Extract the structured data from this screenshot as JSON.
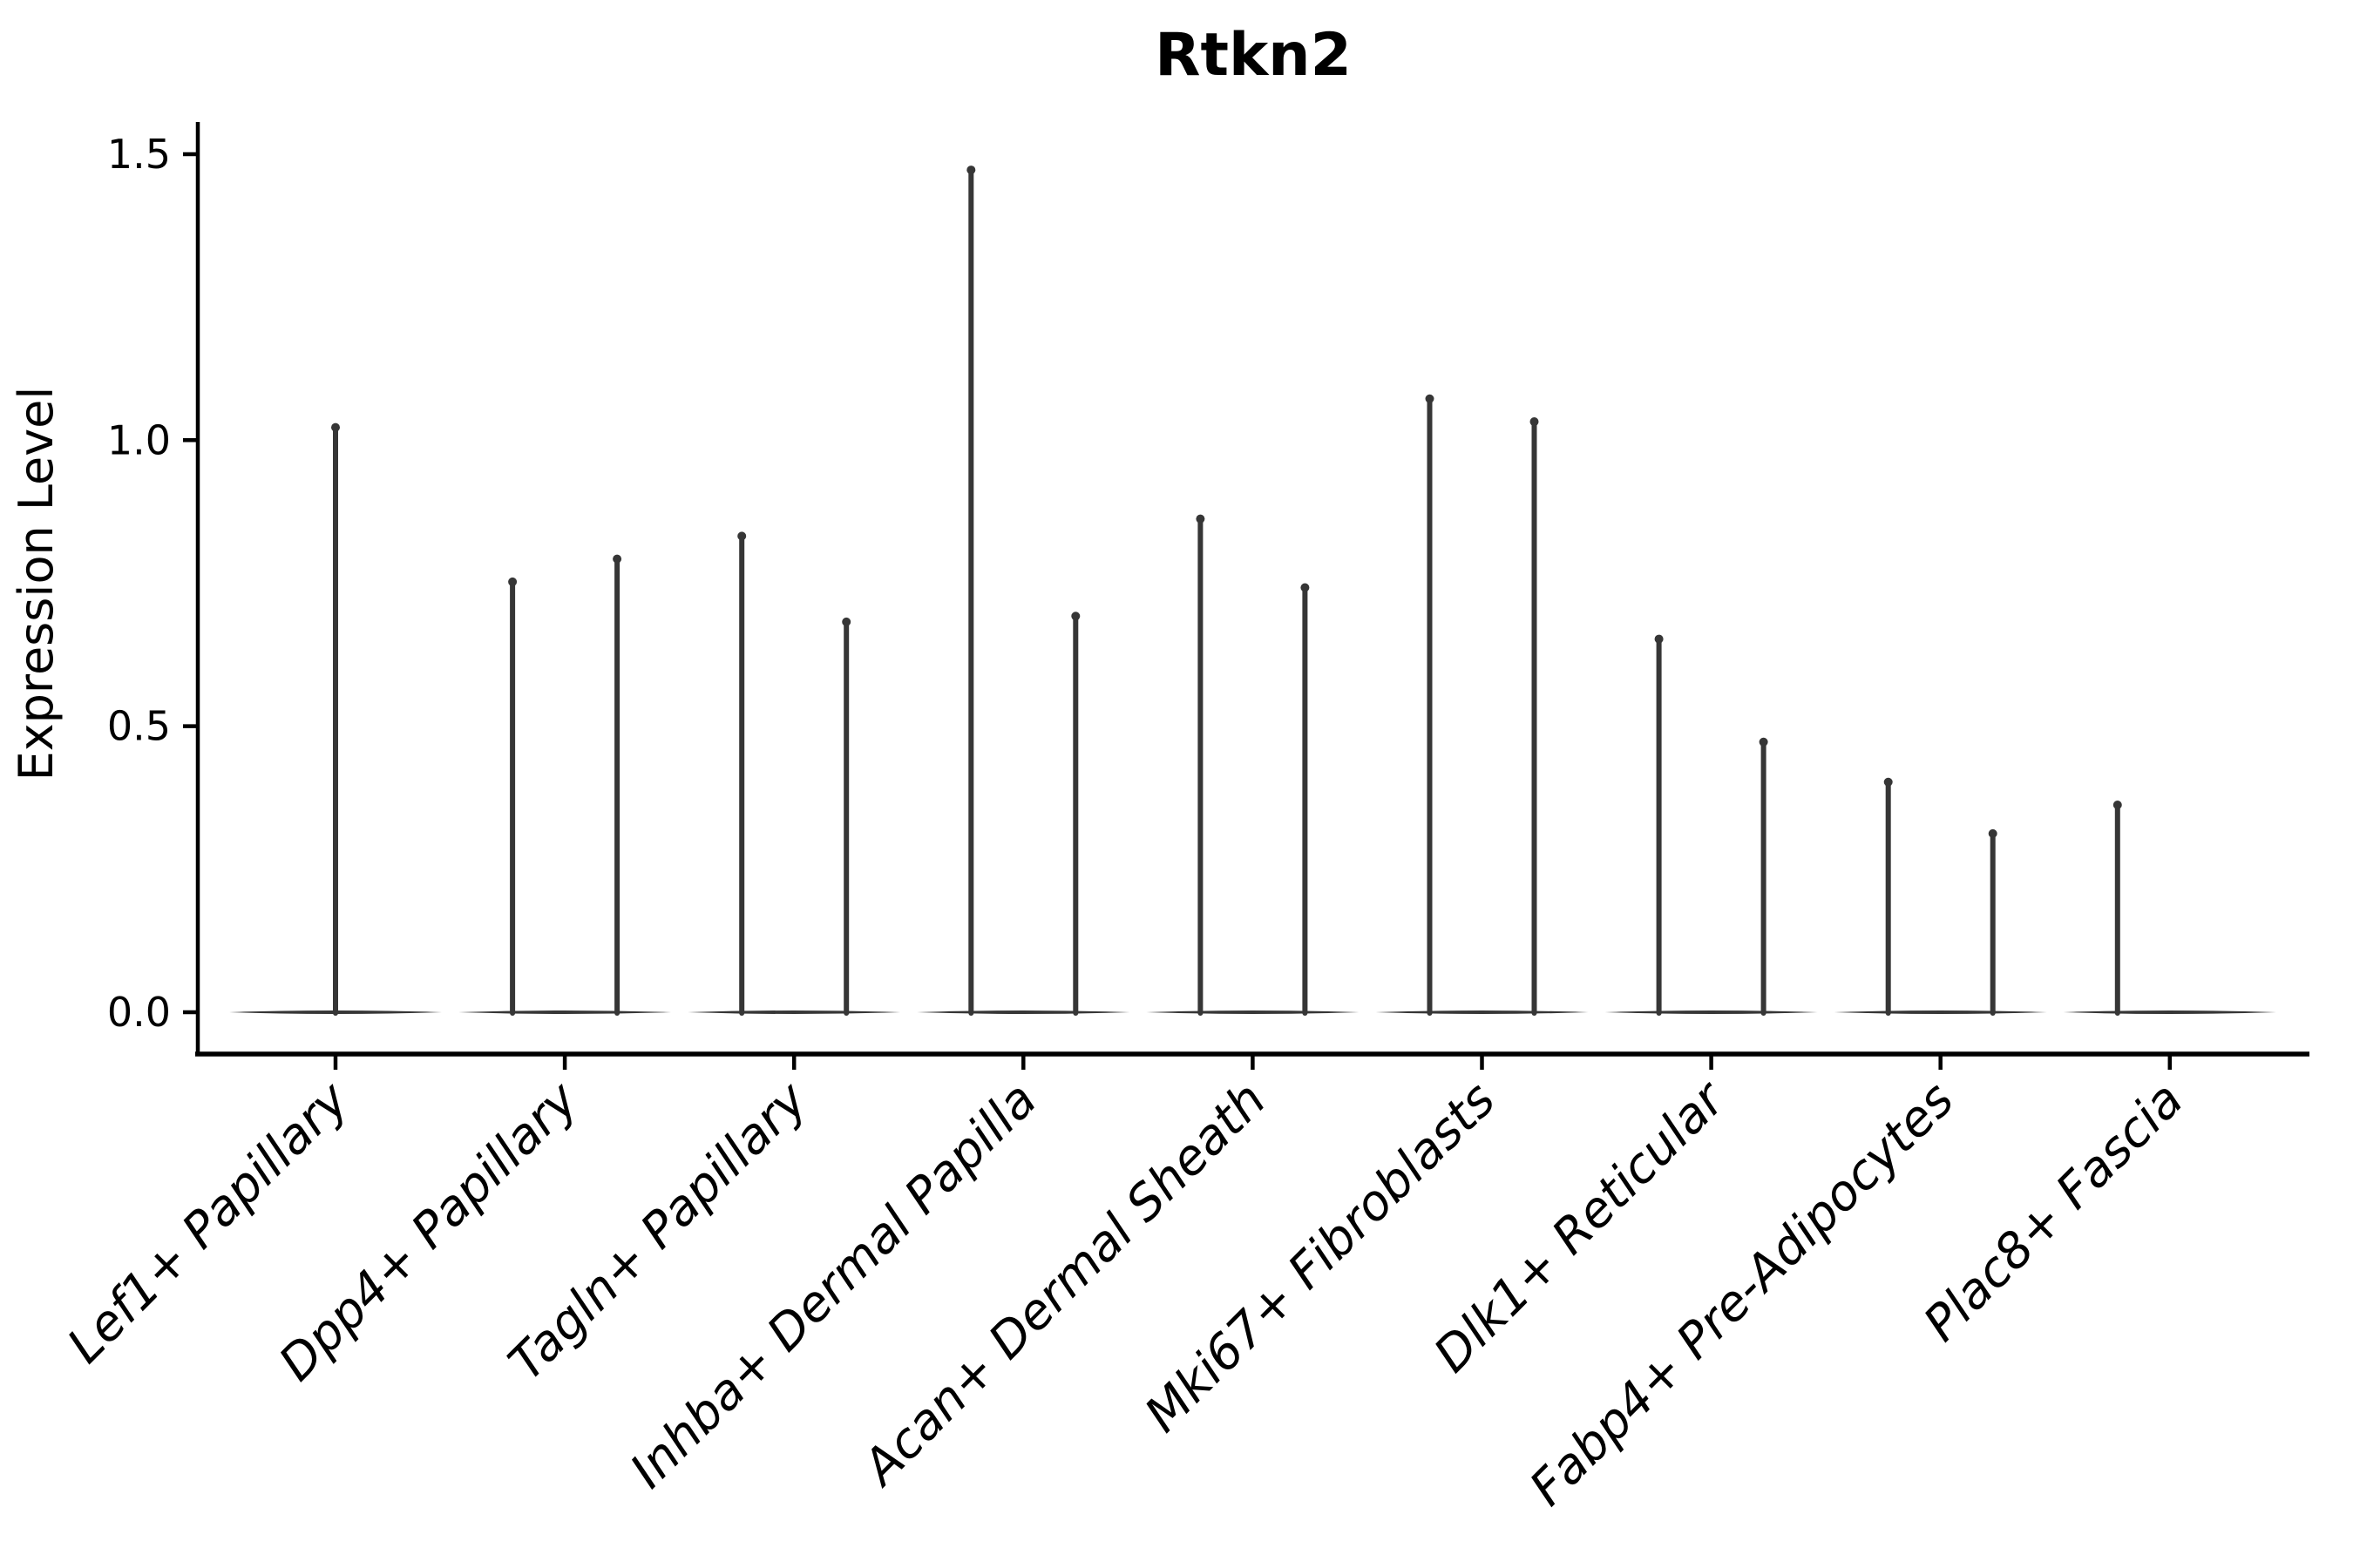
{
  "figure": {
    "background": "#ffffff",
    "axis_color": "#000000",
    "violin_color": "#363636",
    "text_color": "#000000"
  },
  "chart_data": {
    "type": "violin",
    "title": "Rtkn2",
    "xlabel": "",
    "ylabel": "Expression Level",
    "ylim": [
      0.0,
      1.5
    ],
    "yticks": [
      0.0,
      0.5,
      1.0,
      1.5
    ],
    "ytick_labels": [
      "0.0",
      "0.5",
      "1.0",
      "1.5"
    ],
    "grid": false,
    "legend": null,
    "x_tick_rotation_degrees": 45,
    "baseline_value": 0.0,
    "description": "Near-zero-width violins: each cluster shows a flat base at expression 0 plus thin spikes rising to the maximum expression value.",
    "categories": [
      "Lef1+ Papillary",
      "Dpp4+ Papillary",
      "Tagln+ Papillary",
      "Inhba+ Dermal Papilla",
      "Acan+ Dermal Sheath",
      "Mki67+ Fibroblasts",
      "Dlk1+ Reticular",
      "Fabp4+ Pre-Adipocytes",
      "Plac8+ Fascia"
    ],
    "violins": [
      {
        "category": "Lef1+ Papillary",
        "spikes": [
          {
            "offset": "center",
            "max": 1.03
          }
        ]
      },
      {
        "category": "Dpp4+ Papillary",
        "spikes": [
          {
            "offset": "left",
            "max": 0.76
          },
          {
            "offset": "right",
            "max": 0.8
          }
        ]
      },
      {
        "category": "Tagln+ Papillary",
        "spikes": [
          {
            "offset": "left",
            "max": 0.84
          },
          {
            "offset": "right",
            "max": 0.69
          }
        ]
      },
      {
        "category": "Inhba+ Dermal Papilla",
        "spikes": [
          {
            "offset": "left",
            "max": 1.48
          },
          {
            "offset": "right",
            "max": 0.7
          }
        ]
      },
      {
        "category": "Acan+ Dermal Sheath",
        "spikes": [
          {
            "offset": "left",
            "max": 0.87
          },
          {
            "offset": "right",
            "max": 0.75
          }
        ]
      },
      {
        "category": "Mki67+ Fibroblasts",
        "spikes": [
          {
            "offset": "left",
            "max": 1.08
          },
          {
            "offset": "right",
            "max": 1.04
          }
        ]
      },
      {
        "category": "Dlk1+ Reticular",
        "spikes": [
          {
            "offset": "left",
            "max": 0.66
          },
          {
            "offset": "right",
            "max": 0.48
          }
        ]
      },
      {
        "category": "Fabp4+ Pre-Adipocytes",
        "spikes": [
          {
            "offset": "left",
            "max": 0.41
          },
          {
            "offset": "right",
            "max": 0.32
          }
        ]
      },
      {
        "category": "Plac8+ Fascia",
        "spikes": [
          {
            "offset": "left",
            "max": 0.37
          }
        ]
      }
    ]
  }
}
